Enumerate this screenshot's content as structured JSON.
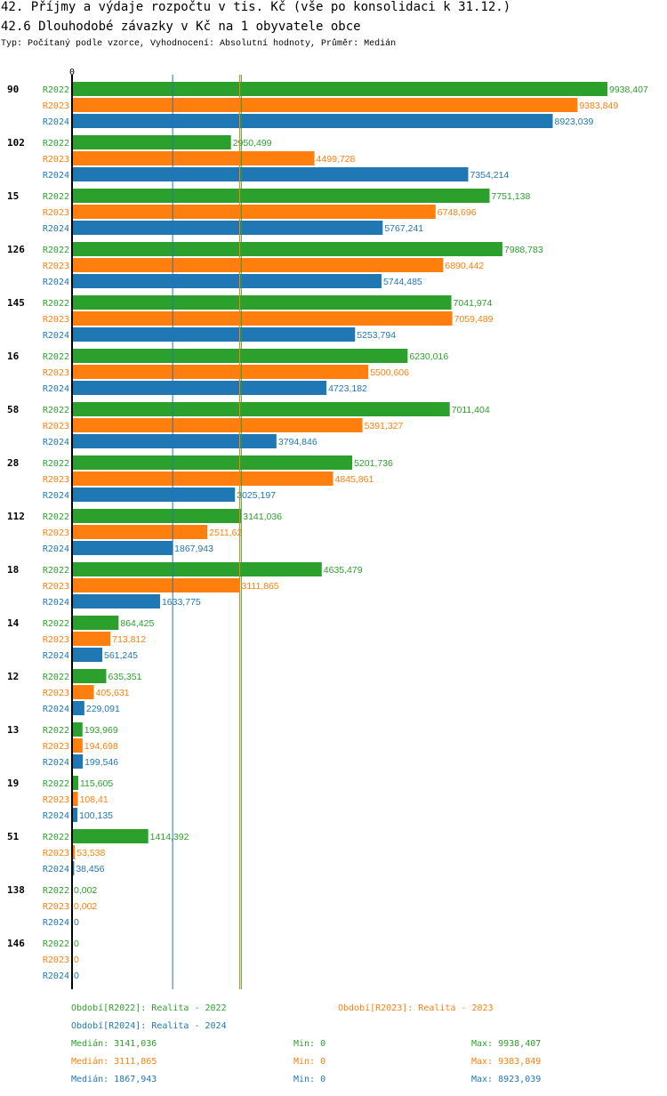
{
  "header": {
    "title": "42. Příjmy a výdaje rozpočtu v tis. Kč (vše po konsolidaci k 31.12.)",
    "subtitle": "42.6 Dlouhodobé závazky v Kč na 1 obyvatele obce",
    "type_line": "Typ: Počítaný podle vzorce, Vyhodnocení: Absolutní hodnoty, Průměr: Medián"
  },
  "colors": {
    "R2022": "#2ca02c",
    "R2023": "#ff7f0e",
    "R2024": "#1f77b4"
  },
  "chart_data": {
    "type": "bar",
    "orientation": "horizontal",
    "x_axis_start_label": "0",
    "xlim": [
      0,
      9938.407
    ],
    "series_names": [
      "R2022",
      "R2023",
      "R2024"
    ],
    "categories": [
      "90",
      "102",
      "15",
      "126",
      "145",
      "16",
      "58",
      "28",
      "112",
      "18",
      "14",
      "12",
      "13",
      "19",
      "51",
      "138",
      "146"
    ],
    "series": [
      {
        "name": "R2022",
        "values": [
          9938.407,
          2950.499,
          7751.138,
          7988.783,
          7041.974,
          6230.016,
          7011.404,
          5201.736,
          3141.036,
          4635.479,
          864.425,
          635.351,
          193.969,
          115.605,
          1414.392,
          0.002,
          0
        ],
        "labels": [
          "9938,407",
          "2950,499",
          "7751,138",
          "7988,783",
          "7041,974",
          "6230,016",
          "7011,404",
          "5201,736",
          "3141,036",
          "4635,479",
          "864,425",
          "635,351",
          "193,969",
          "115,605",
          "1414,392",
          "0,002",
          "0"
        ]
      },
      {
        "name": "R2023",
        "values": [
          9383.849,
          4499.728,
          6748.696,
          6890.442,
          7059.489,
          5500.606,
          5391.327,
          4845.861,
          2511.62,
          3111.865,
          713.812,
          405.631,
          194.698,
          108.41,
          53.538,
          0.002,
          0
        ],
        "labels": [
          "9383,849",
          "4499,728",
          "6748,696",
          "6890,442",
          "7059,489",
          "5500,606",
          "5391,327",
          "4845,861",
          "2511,62",
          "3111,865",
          "713,812",
          "405,631",
          "194,698",
          "108,41",
          "53,538",
          "0,002",
          "0"
        ]
      },
      {
        "name": "R2024",
        "values": [
          8923.039,
          7354.214,
          5767.241,
          5744.485,
          5253.794,
          4723.182,
          3794.846,
          3025.197,
          1867.943,
          1633.775,
          561.245,
          229.091,
          199.546,
          100.135,
          38.456,
          0,
          0
        ],
        "labels": [
          "8923,039",
          "7354,214",
          "5767,241",
          "5744,485",
          "5253,794",
          "4723,182",
          "3794,846",
          "3025,197",
          "1867,943",
          "1633,775",
          "561,245",
          "229,091",
          "199,546",
          "100,135",
          "38,456",
          "0",
          "0"
        ]
      }
    ],
    "reference_lines": [
      {
        "series": "R2022",
        "median": 3141.036
      },
      {
        "series": "R2023",
        "median": 3111.865
      },
      {
        "series": "R2024",
        "median": 1867.943
      }
    ]
  },
  "legend": {
    "r2022": "Období[R2022]: Realita - 2022",
    "r2023": "Období[R2023]: Realita - 2023",
    "r2024": "Období[R2024]: Realita - 2024"
  },
  "stats": [
    {
      "series": "R2022",
      "median": "Medián: 3141,036",
      "min": "Min: 0",
      "max": "Max: 9938,407"
    },
    {
      "series": "R2023",
      "median": "Medián: 3111,865",
      "min": "Min: 0",
      "max": "Max: 9383,849"
    },
    {
      "series": "R2024",
      "median": "Medián: 1867,943",
      "min": "Min: 0",
      "max": "Max: 8923,039"
    }
  ]
}
